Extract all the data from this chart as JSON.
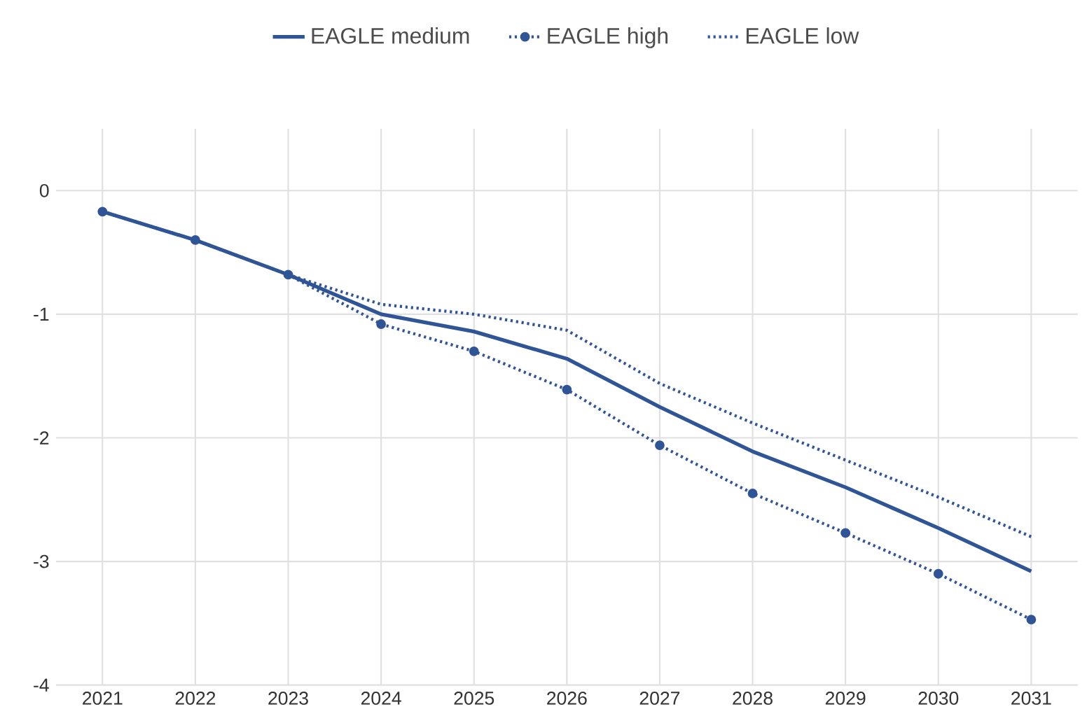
{
  "chart_data": {
    "type": "line",
    "categories": [
      "2021",
      "2022",
      "2023",
      "2024",
      "2025",
      "2026",
      "2027",
      "2028",
      "2029",
      "2030",
      "2031"
    ],
    "series": [
      {
        "name": "EAGLE medium",
        "color": "#2f5597",
        "line_style": "solid",
        "marker": "none",
        "values": [
          -0.17,
          -0.4,
          -0.68,
          -1.0,
          -1.14,
          -1.36,
          -1.75,
          -2.11,
          -2.4,
          -2.73,
          -3.08
        ]
      },
      {
        "name": "EAGLE high",
        "color": "#2f5597",
        "line_style": "dotted",
        "marker": "circle",
        "values": [
          -0.17,
          -0.4,
          -0.68,
          -1.08,
          -1.3,
          -1.61,
          -2.06,
          -2.45,
          -2.77,
          -3.1,
          -3.47
        ]
      },
      {
        "name": "EAGLE low",
        "color": "#2f5597",
        "line_style": "dotted",
        "marker": "none",
        "values": [
          -0.17,
          -0.4,
          -0.68,
          -0.92,
          -1.0,
          -1.13,
          -1.56,
          -1.88,
          -2.18,
          -2.48,
          -2.8
        ]
      }
    ],
    "ylim": [
      -4,
      0.5
    ],
    "yticks": [
      0,
      -1,
      -2,
      -3,
      -4
    ],
    "grid": true,
    "legend": "top"
  }
}
